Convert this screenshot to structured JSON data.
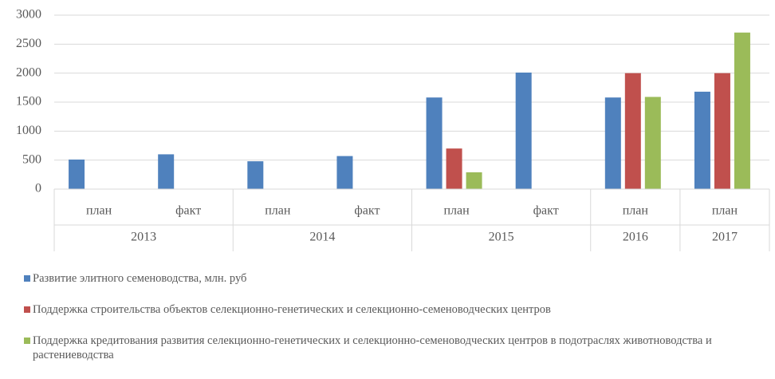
{
  "chart_data": {
    "type": "bar",
    "categories": [
      "план",
      "факт",
      "план",
      "факт",
      "план",
      "факт",
      "план",
      "план"
    ],
    "groups": [
      {
        "name": "2013",
        "count": 2
      },
      {
        "name": "2014",
        "count": 2
      },
      {
        "name": "2015",
        "count": 2
      },
      {
        "name": "2016",
        "count": 1
      },
      {
        "name": "2017",
        "count": 1
      }
    ],
    "series": [
      {
        "name": "Развитие элитного семеноводства, млн. руб",
        "color": "#4f81bd",
        "values": [
          510,
          600,
          480,
          570,
          1580,
          2010,
          1580,
          1680
        ]
      },
      {
        "name": "Поддержка строительства объектов селекционно-генетических и селекционно-семеноводческих центров",
        "color": "#c0504d",
        "values": [
          null,
          null,
          null,
          null,
          700,
          null,
          2000,
          2000
        ]
      },
      {
        "name": "Поддержка кредитования развития селекционно-генетических и селекционно-семеноводческих центров в подотраслях животноводства и растениеводства",
        "color": "#9bbb59",
        "values": [
          null,
          null,
          null,
          null,
          290,
          null,
          1590,
          2700
        ]
      }
    ],
    "ylim": [
      0,
      3000
    ],
    "yticks": [
      0,
      500,
      1000,
      1500,
      2000,
      2500,
      3000
    ],
    "grid": true
  }
}
